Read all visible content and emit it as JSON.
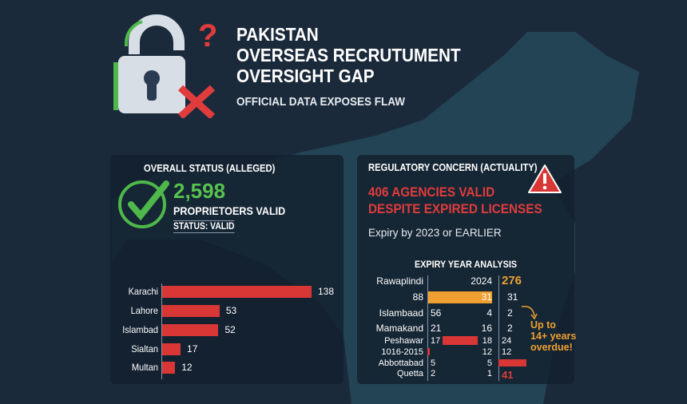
{
  "header": {
    "title_lines": [
      "PAKISTAN",
      "OVERSEAS RECRUTUMENT",
      "OVERSIGHT GAP"
    ],
    "subtitle": "OFFICIAL DATA EXPOSES FLAW",
    "icon": "broken-padlock-icon"
  },
  "left_card": {
    "heading": "OVERALL STATUS (ALLEGED)",
    "count": "2,598",
    "count_label": "PROPRIETOERS VALID",
    "status": "STATUS: VALID",
    "icon": "green-checkmark-icon",
    "accent": "#58c24f"
  },
  "chart_data": {
    "type": "bar",
    "orientation": "horizontal",
    "categories": [
      "Karachi",
      "Lahore",
      "Islambad",
      "Sialtan",
      "Multan"
    ],
    "values": [
      138,
      53,
      52,
      17,
      12
    ],
    "bar_color": "#d93636"
  },
  "right_card": {
    "heading": "REGULATORY CONCERN (ACTUALITY)",
    "alert_line1": "406 AGENCIES VALID",
    "alert_line2": "DESPITE EXPIRED LICENSES",
    "expiry_note": "Expiry by 2023 or EARLIER",
    "analysis_title": "EXPIRY YEAR ANALYSIS",
    "icon": "warning-triangle-icon",
    "alert_color": "#e03c3c",
    "highlight_color": "#f0a030",
    "rows": [
      {
        "label": "Rawaplindi",
        "c1": "",
        "c2": "2024",
        "c3": "276"
      },
      {
        "label": "88",
        "c1": "",
        "c2": "31",
        "c3": "31"
      },
      {
        "label": "Islambaad",
        "c1": "56",
        "c2": "4",
        "c3": "2"
      },
      {
        "label": "Mamakand",
        "c1": "21",
        "c2": "16",
        "c3": "2"
      },
      {
        "label": "Peshawar",
        "c1": "17",
        "c2": "18",
        "c3": "24"
      },
      {
        "label": "1016-2015",
        "c1": "",
        "c2": "12",
        "c3": "12"
      },
      {
        "label": "Abbottabad",
        "c1": "5",
        "c2": "5",
        "c3": ""
      },
      {
        "label": "Quetta",
        "c1": "2",
        "c2": "1",
        "c3": "41"
      }
    ],
    "callout": [
      "Up to",
      "14+ years",
      "overdue!"
    ]
  }
}
